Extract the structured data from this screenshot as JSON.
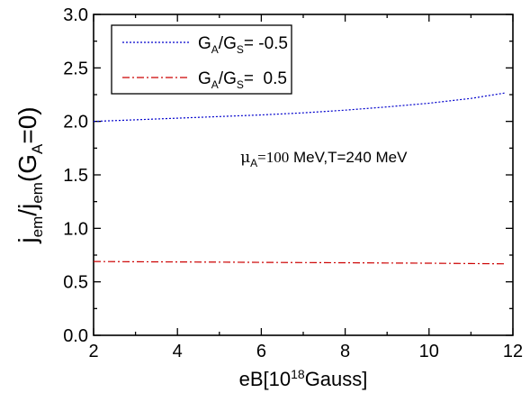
{
  "chart_data": {
    "type": "line",
    "title": "",
    "xlabel": {
      "main": "eB[10",
      "sup": "18",
      "tail": "Gauss]"
    },
    "ylabel": {
      "j1": "j",
      "s1": "em",
      "slash": "/j",
      "s2": "em",
      "paren": "(G",
      "s3": "A",
      "tail": "=0)"
    },
    "xlim": [
      2,
      12
    ],
    "ylim": [
      0.0,
      3.0
    ],
    "xticks": [
      2,
      4,
      6,
      8,
      10,
      12
    ],
    "yticks": [
      0.0,
      0.5,
      1.0,
      1.5,
      2.0,
      2.5,
      3.0
    ],
    "xtick_labels": [
      "2",
      "4",
      "6",
      "8",
      "10",
      "12"
    ],
    "ytick_labels": [
      "0.0",
      "0.5",
      "1.0",
      "1.5",
      "2.0",
      "2.5",
      "3.0"
    ],
    "grid": false,
    "legend_position": "top-left",
    "annotation": {
      "mu": "μ",
      "sub": "A",
      "eq": "=100",
      "rest": " MeV,T=240 MeV",
      "x": 5.5,
      "y": 1.62
    },
    "series": [
      {
        "legend": {
          "g": "G",
          "a": "A",
          "slash": "/G",
          "s": "S",
          "value": "= -0.5"
        },
        "color": "#0000cc",
        "dash": "2,2",
        "x": [
          2,
          3,
          4,
          5,
          6,
          7,
          8,
          9,
          10,
          11,
          11.8
        ],
        "y": [
          2.0,
          2.015,
          2.03,
          2.045,
          2.06,
          2.08,
          2.105,
          2.135,
          2.17,
          2.215,
          2.265
        ]
      },
      {
        "legend": {
          "g": "G",
          "a": "A",
          "slash": "/G",
          "s": "S",
          "value": "=  0.5"
        },
        "color": "#cc0000",
        "dash": "8,3,2,3",
        "x": [
          2,
          3,
          4,
          5,
          6,
          7,
          8,
          9,
          10,
          11,
          11.8
        ],
        "y": [
          0.69,
          0.688,
          0.686,
          0.684,
          0.682,
          0.68,
          0.678,
          0.676,
          0.674,
          0.671,
          0.668
        ]
      }
    ]
  }
}
